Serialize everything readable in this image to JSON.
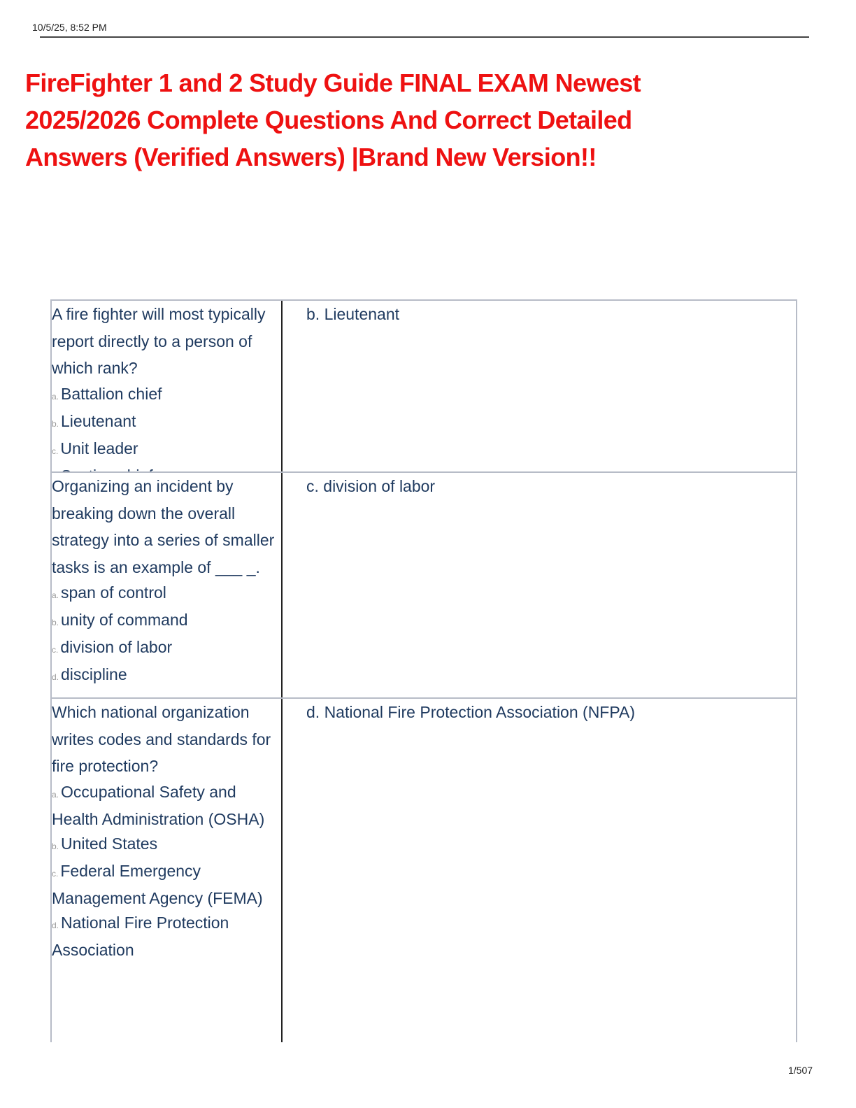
{
  "header": {
    "timestamp": "10/5/25, 8:52 PM"
  },
  "title": "FireFighter 1 and 2 Study Guide FINAL EXAM Newest 2025/2026 Complete Questions And Correct Detailed Answers (Verified Answers) |Brand New Version!!",
  "table": {
    "rows": [
      {
        "question": "A fire fighter will most typically report directly to a person of which rank?",
        "options": [
          {
            "letter": "a.",
            "text": "Battalion chief"
          },
          {
            "letter": "b.",
            "text": "Lieutenant"
          },
          {
            "letter": "c.",
            "text": "Unit leader"
          },
          {
            "letter": "d.",
            "text": "Section chief"
          }
        ],
        "answer": "b. Lieutenant"
      },
      {
        "question": "Organizing an incident by breaking down the overall strategy into a series of smaller tasks is an example of ___ _.",
        "options": [
          {
            "letter": "a.",
            "text": "span of control"
          },
          {
            "letter": "b.",
            "text": "unity of command"
          },
          {
            "letter": "c.",
            "text": "division of labor"
          },
          {
            "letter": "d.",
            "text": "discipline"
          }
        ],
        "answer": "c. division of labor"
      },
      {
        "question": "Which national organization writes codes and standards for fire protection?",
        "options": [
          {
            "letter": "a.",
            "text": "Occupational Safety and Health Administration (OSHA)"
          },
          {
            "letter": "b.",
            "text": "United States"
          },
          {
            "letter": "c.",
            "text": "Federal Emergency Management Agency (FEMA)"
          },
          {
            "letter": "d.",
            "text": "National Fire Protection Association"
          }
        ],
        "answer": "d. National Fire Protection Association (NFPA)"
      }
    ]
  },
  "footer": {
    "page": "1/507"
  }
}
